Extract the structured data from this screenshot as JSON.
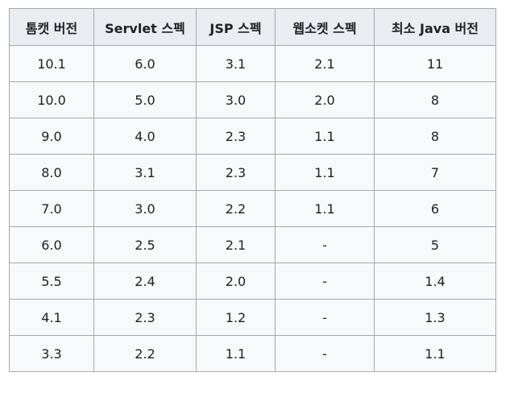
{
  "table": {
    "headers": [
      "톰캣 버전",
      "Servlet 스펙",
      "JSP 스펙",
      "웹소켓 스펙",
      "최소 Java 버전"
    ],
    "rows": [
      [
        "10.1",
        "6.0",
        "3.1",
        "2.1",
        "11"
      ],
      [
        "10.0",
        "5.0",
        "3.0",
        "2.0",
        "8"
      ],
      [
        "9.0",
        "4.0",
        "2.3",
        "1.1",
        "8"
      ],
      [
        "8.0",
        "3.1",
        "2.3",
        "1.1",
        "7"
      ],
      [
        "7.0",
        "3.0",
        "2.2",
        "1.1",
        "6"
      ],
      [
        "6.0",
        "2.5",
        "2.1",
        "-",
        "5"
      ],
      [
        "5.5",
        "2.4",
        "2.0",
        "-",
        "1.4"
      ],
      [
        "4.1",
        "2.3",
        "1.2",
        "-",
        "1.3"
      ],
      [
        "3.3",
        "2.2",
        "1.1",
        "-",
        "1.1"
      ]
    ]
  },
  "colors": {
    "header_bg": "#eaecf0",
    "cell_bg": "#f8f9fa",
    "border": "#a2a9b1",
    "text": "#202122"
  }
}
